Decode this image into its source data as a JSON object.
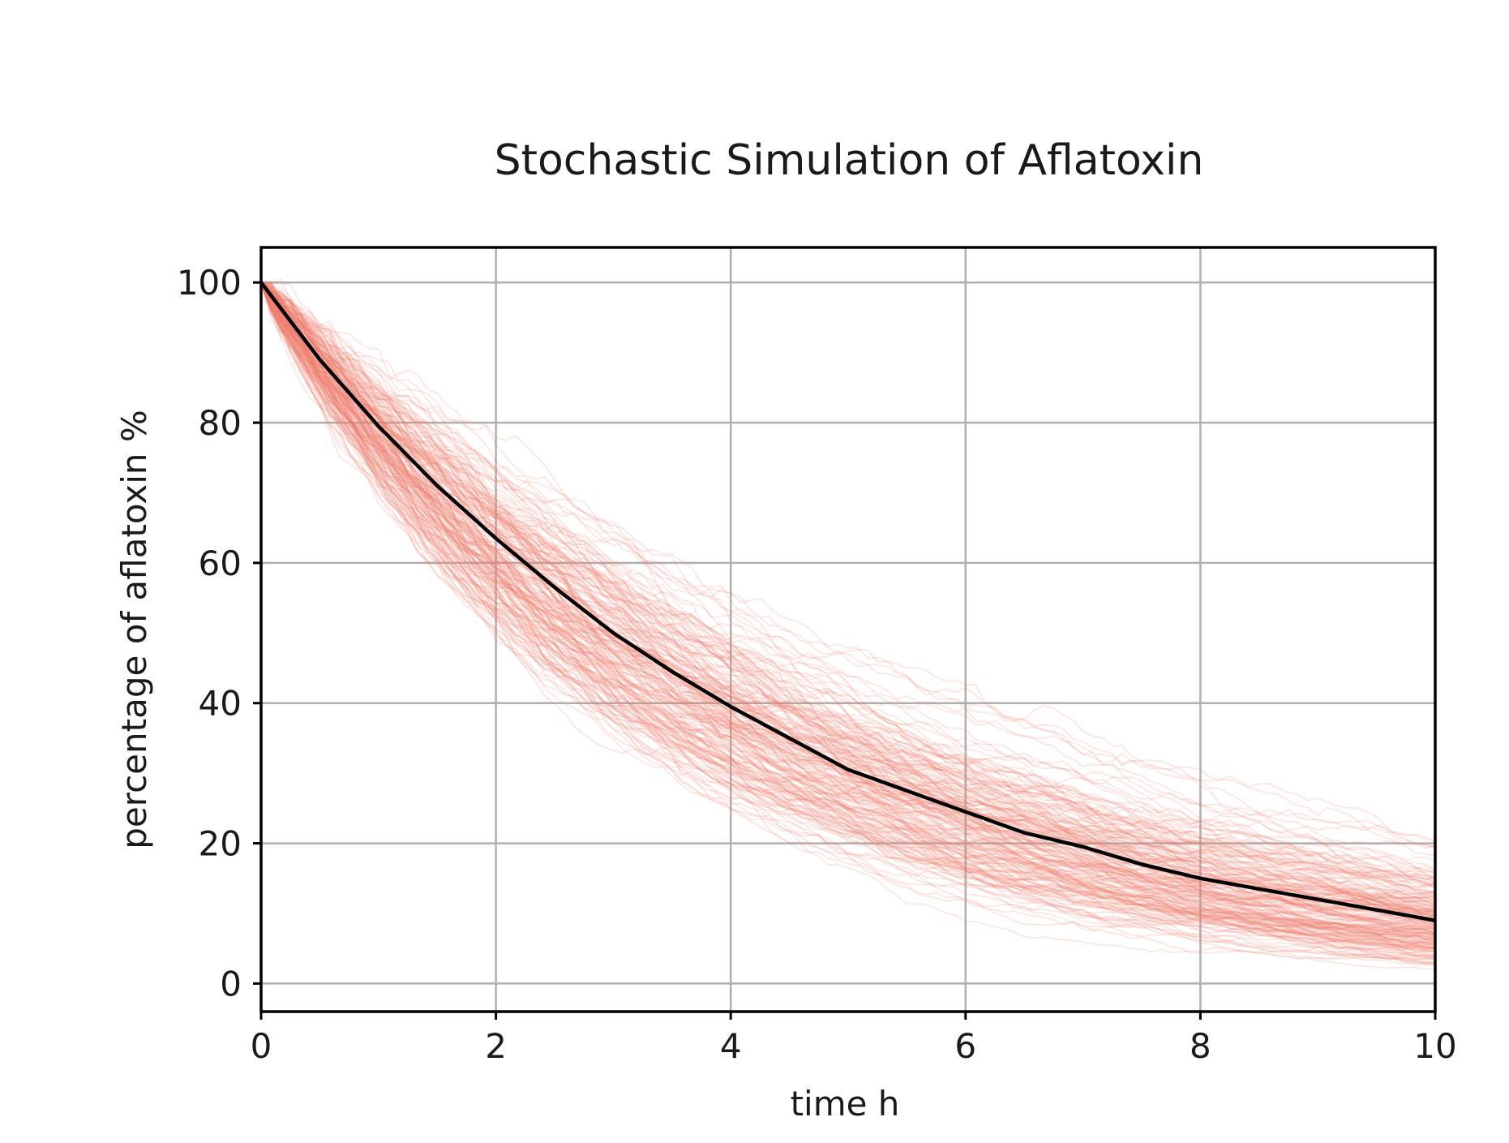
{
  "chart_data": {
    "type": "line",
    "title": "Stochastic Simulation of Aflatoxin",
    "xlabel": "time h",
    "ylabel": "percentage of aflatoxin %",
    "xlim": [
      0,
      10
    ],
    "ylim": [
      -4,
      105
    ],
    "x_ticks": [
      "0",
      "2",
      "4",
      "6",
      "8",
      "10"
    ],
    "y_ticks": [
      "0",
      "20",
      "40",
      "60",
      "80",
      "100"
    ],
    "x_tick_values": [
      0,
      2,
      4,
      6,
      8,
      10
    ],
    "y_tick_values": [
      0,
      20,
      40,
      60,
      80,
      100
    ],
    "grid": true,
    "legend": "none",
    "colors": {
      "simulations": "#f08070",
      "mean": "#000000",
      "grid": "#b0b0b0"
    },
    "simulations": {
      "count": 200,
      "opacity": 0.18,
      "start": 100,
      "band_at_end": [
        3,
        18
      ]
    },
    "series": [
      {
        "x": [
          0,
          0.5,
          1,
          1.5,
          2,
          2.5,
          3,
          3.5,
          4,
          4.5,
          5,
          5.5,
          6,
          6.5,
          7,
          7.5,
          8,
          8.5,
          9,
          9.5,
          10
        ],
        "y": [
          100,
          89,
          79.5,
          71,
          63.5,
          56.5,
          50,
          44.5,
          39.5,
          35,
          30.5,
          27.5,
          24.5,
          21.5,
          19.5,
          17,
          15,
          13.5,
          12,
          10.5,
          9
        ]
      }
    ]
  }
}
